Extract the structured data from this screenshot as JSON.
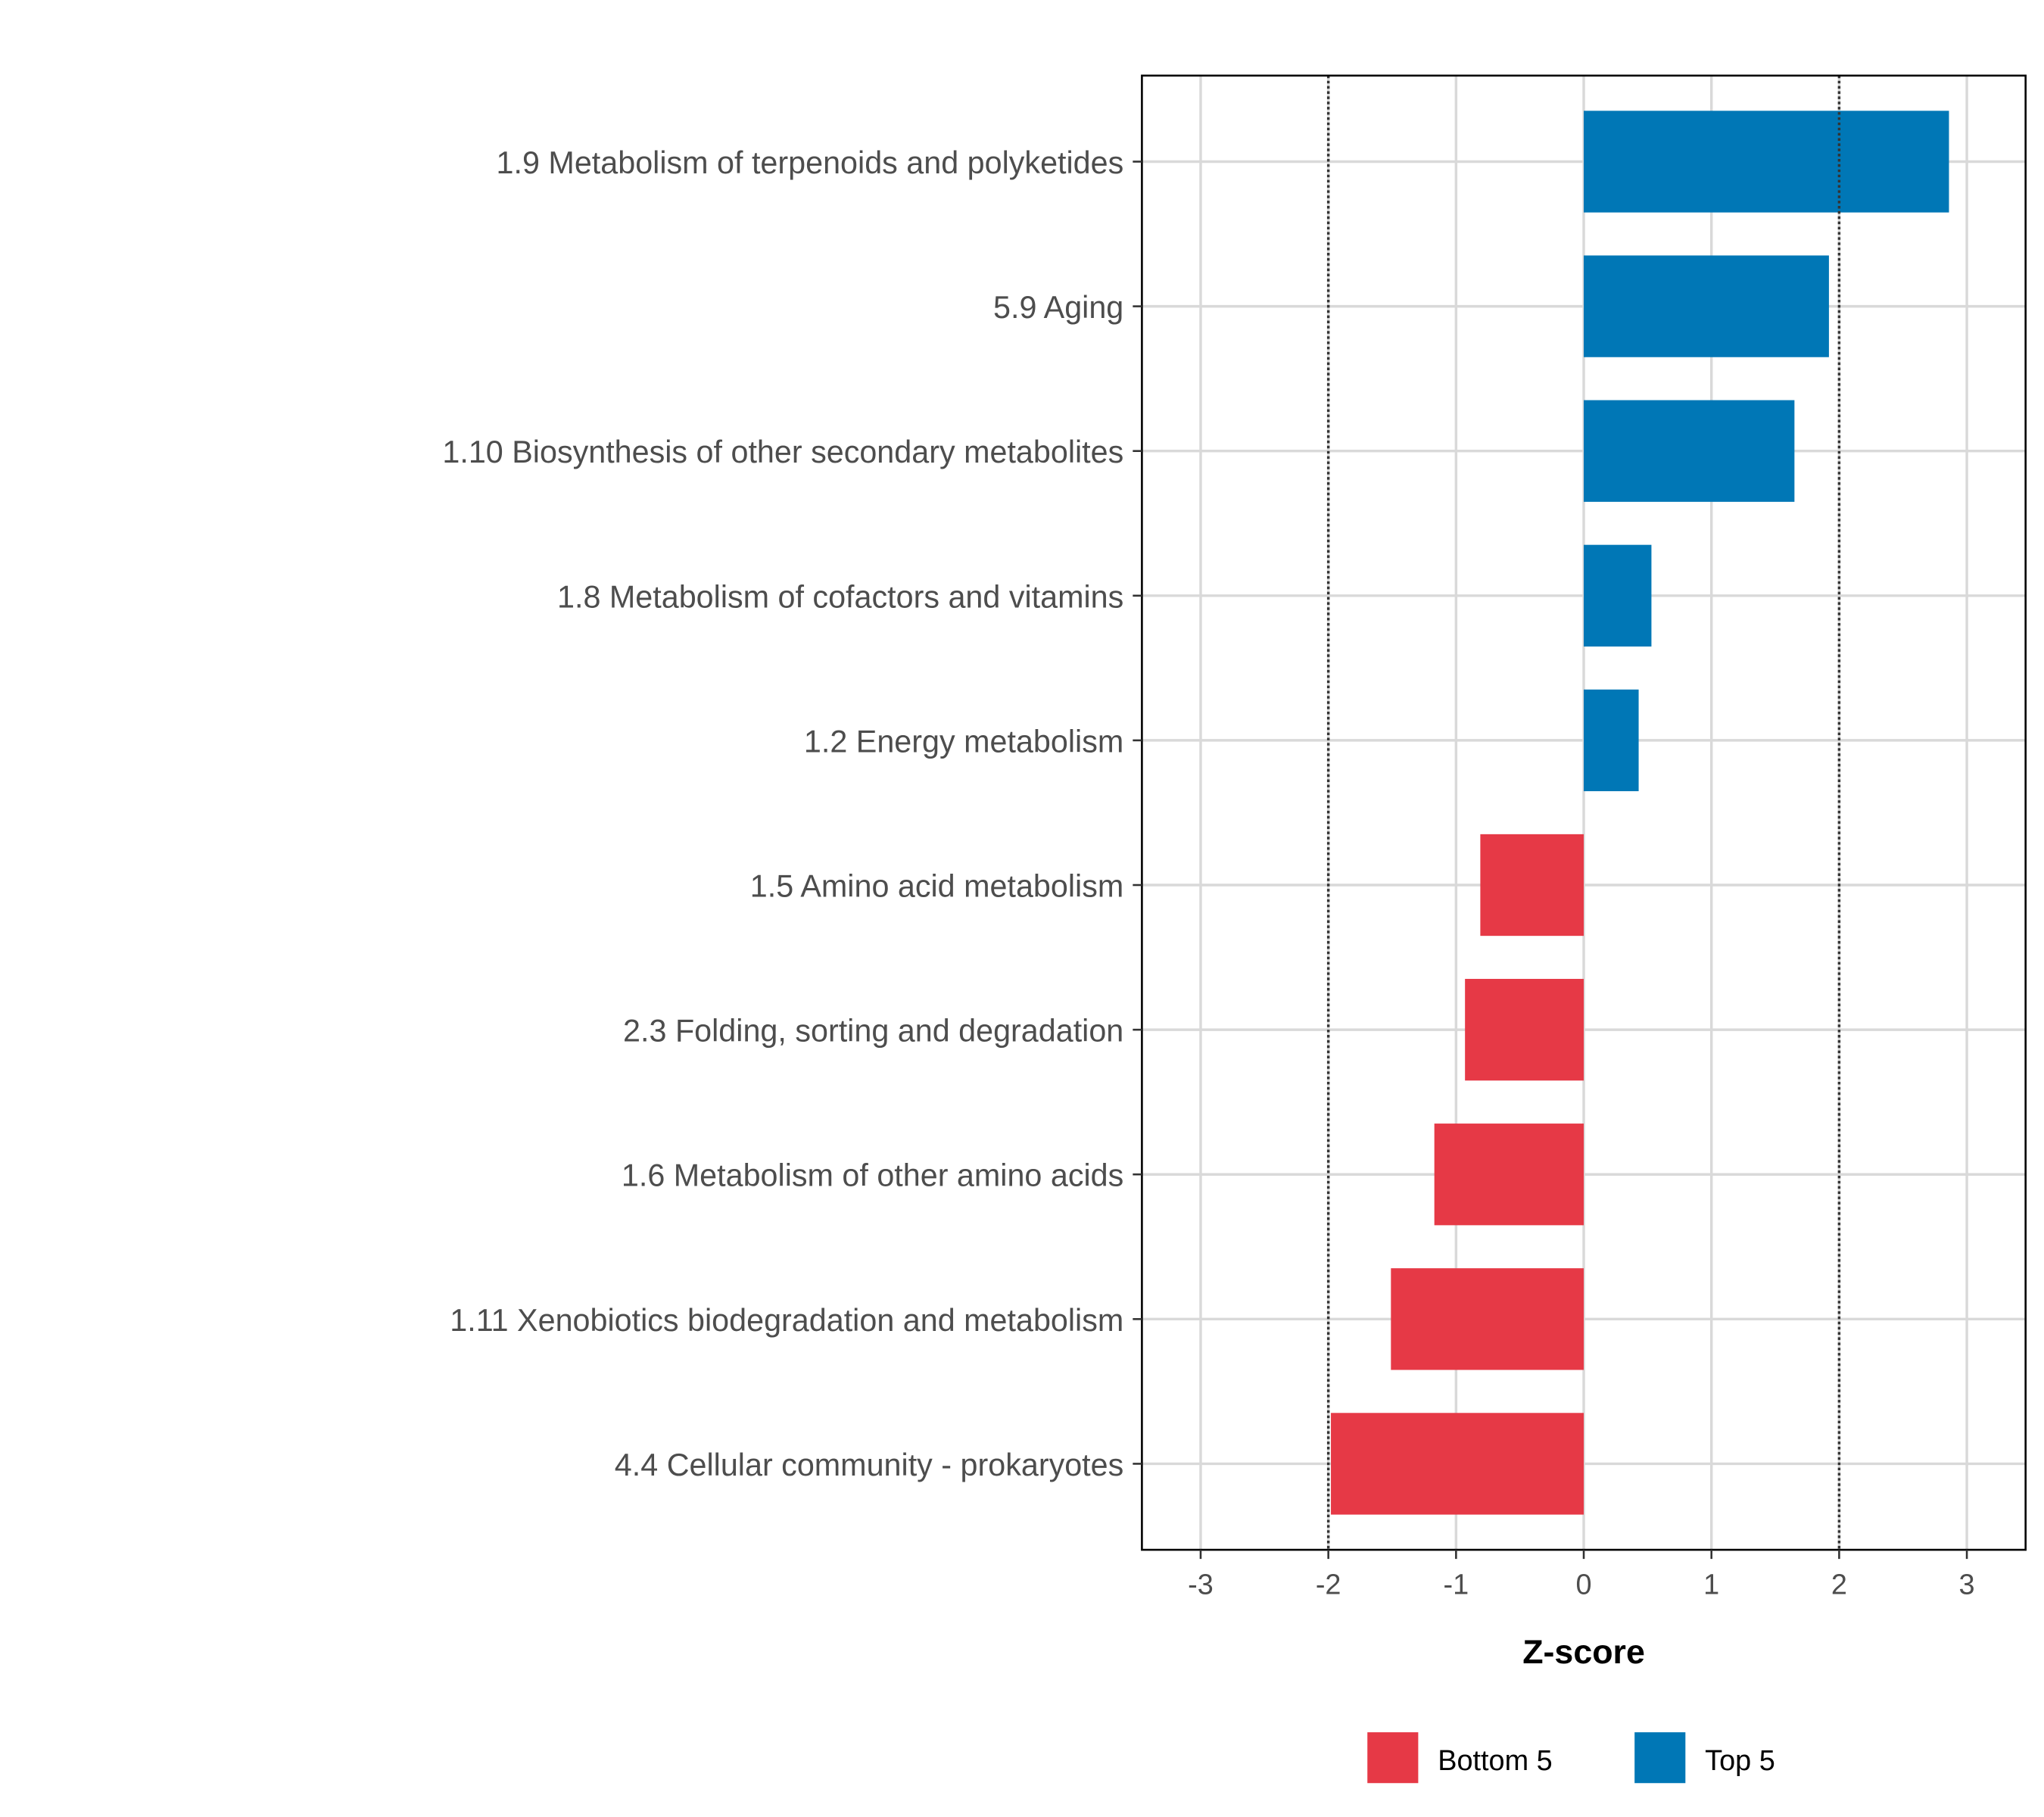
{
  "chart_data": {
    "type": "bar",
    "orientation": "horizontal",
    "title": "",
    "xlabel": "Z-score",
    "ylabel": "",
    "xlim": [
      -3.46,
      3.46
    ],
    "xticks": [
      -3,
      -2,
      -1,
      0,
      1,
      2,
      3
    ],
    "xtick_labels": [
      "-3",
      "-2",
      "-1",
      "0",
      "1",
      "2",
      "3"
    ],
    "reference_lines": [
      -2,
      2
    ],
    "grid": true,
    "legend_position": "bottom",
    "categories": [
      "1.9 Metabolism of terpenoids and polyketides",
      "5.9 Aging",
      "1.10 Biosynthesis of other secondary metabolites",
      "1.8 Metabolism of cofactors and vitamins",
      "1.2 Energy metabolism",
      "1.5 Amino acid metabolism",
      "2.3 Folding, sorting and degradation",
      "1.6 Metabolism of other amino acids",
      "1.11 Xenobiotics biodegradation and metabolism",
      "4.4 Cellular community - prokaryotes"
    ],
    "values": [
      2.86,
      1.92,
      1.65,
      0.53,
      0.43,
      -0.81,
      -0.93,
      -1.17,
      -1.51,
      -1.98
    ],
    "groups": [
      "Top 5",
      "Top 5",
      "Top 5",
      "Top 5",
      "Top 5",
      "Bottom 5",
      "Bottom 5",
      "Bottom 5",
      "Bottom 5",
      "Bottom 5"
    ],
    "legend": [
      {
        "name": "Bottom 5",
        "color": "#E63946"
      },
      {
        "name": "Top 5",
        "color": "#0077B6"
      }
    ]
  }
}
